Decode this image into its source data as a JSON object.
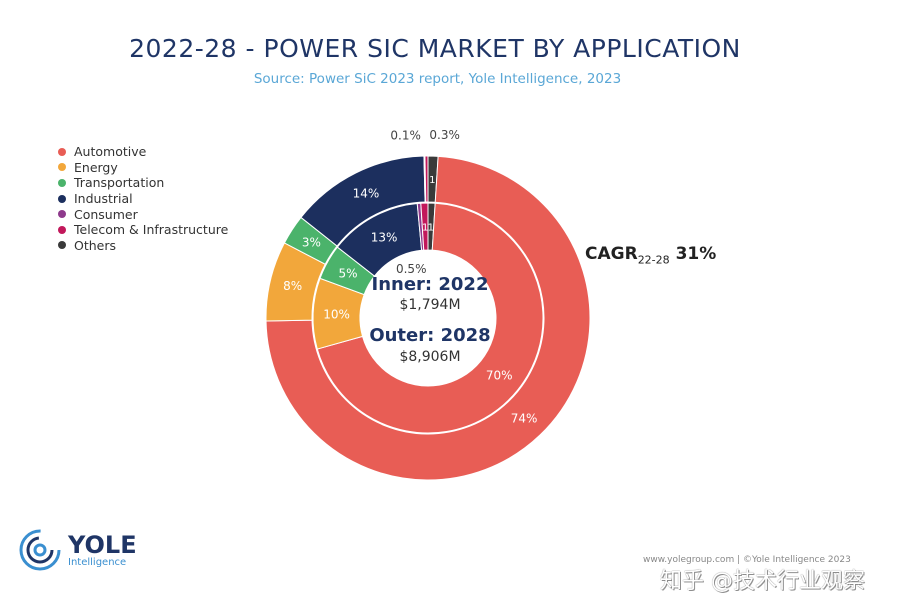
{
  "chart_data": {
    "type": "donut",
    "title": "2022-28 - POWER SIC MARKET BY APPLICATION",
    "subtitle": "Source: Power SiC 2023 report, Yole Intelligence, 2023",
    "legend_position": "left",
    "categories": [
      "Automotive",
      "Energy",
      "Transportation",
      "Industrial",
      "Consumer",
      "Telecom & Infrastructure",
      "Others"
    ],
    "colors": [
      "#e85d55",
      "#f2a73b",
      "#4bb36b",
      "#1c2f5e",
      "#8e3a8c",
      "#c2185b",
      "#3a3a3a"
    ],
    "series": [
      {
        "name": "Inner: 2022",
        "total": "$1,794M",
        "values": [
          70,
          10,
          5,
          13,
          0.5,
          1,
          1
        ],
        "labels": [
          "70%",
          "10%",
          "5%",
          "13%",
          "0.5%",
          "1",
          "1"
        ]
      },
      {
        "name": "Outer: 2028",
        "total": "$8,906M",
        "values": [
          74,
          8,
          3,
          14,
          0.1,
          0.3,
          1
        ],
        "labels": [
          "74%",
          "8%",
          "3%",
          "14%",
          "0.1%",
          "0.3%",
          "1"
        ]
      }
    ],
    "annotation": {
      "label": "CAGR",
      "sub": "22-28",
      "value": "31%"
    }
  },
  "logo": {
    "name": "YOLE",
    "sub": "Intelligence"
  },
  "footer": "www.yolegroup.com | ©Yole Intelligence 2023",
  "watermark": "知乎 @技术行业观察"
}
